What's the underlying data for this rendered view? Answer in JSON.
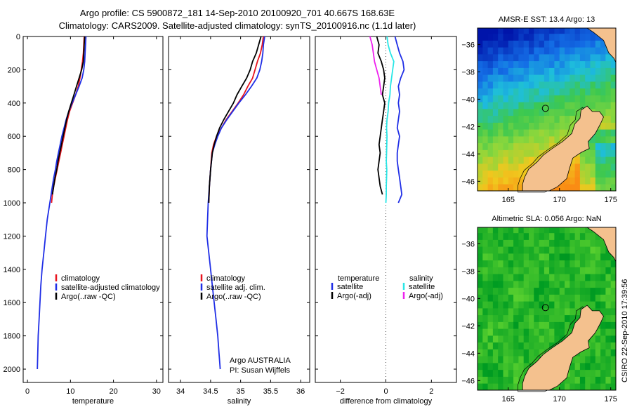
{
  "header": {
    "line1": "Argo profile: CS 5900872_181 14-Sep-2010 20100920_701 40.667S 168.63E",
    "line2": "Climatology: CARS2009. Satellite-adjusted climatology: synTS_20100916.nc (1.1d later)"
  },
  "footer": {
    "credit1": "Argo AUSTRALIA",
    "credit2": "PI: Susan Wijffels",
    "stamp": "CSIRO 22-Sep-2010 17:39:56"
  },
  "colors": {
    "climatology": "#e8141e",
    "satellite": "#1f2ee6",
    "argo": "#000000",
    "sal_satellite": "#28e6e6",
    "sal_argo": "#ee22ee",
    "land": "#f4c18e"
  },
  "chart_data": [
    {
      "type": "line",
      "id": "temperature",
      "xlabel": "temperature",
      "ylabel": "",
      "xlim": [
        -1,
        31.5
      ],
      "ylim": [
        0,
        2080
      ],
      "y_reversed": true,
      "xticks": [
        0,
        10,
        20,
        30
      ],
      "yticks": [
        0,
        200,
        400,
        600,
        800,
        1000,
        1200,
        1400,
        1600,
        1800,
        2000
      ],
      "legend": {
        "position": "lower-right",
        "entries": [
          "climatology",
          "satellite-adjusted climatology",
          "Argo(..raw -QC)"
        ]
      },
      "series": [
        {
          "name": "climatology",
          "color": "#e8141e",
          "points": [
            [
              13.2,
              0
            ],
            [
              13.1,
              50
            ],
            [
              13.0,
              100
            ],
            [
              12.8,
              150
            ],
            [
              12.5,
              200
            ],
            [
              12.2,
              250
            ],
            [
              11.8,
              300
            ],
            [
              11.2,
              350
            ],
            [
              10.5,
              400
            ],
            [
              9.8,
              450
            ],
            [
              9.3,
              500
            ],
            [
              8.9,
              550
            ],
            [
              8.5,
              600
            ],
            [
              8.1,
              650
            ],
            [
              7.7,
              700
            ],
            [
              7.3,
              750
            ],
            [
              6.9,
              800
            ],
            [
              6.5,
              850
            ],
            [
              6.1,
              900
            ],
            [
              5.8,
              950
            ],
            [
              5.6,
              1000
            ]
          ]
        },
        {
          "name": "satellite-adjusted climatology",
          "color": "#1f2ee6",
          "points": [
            [
              13.6,
              0
            ],
            [
              13.5,
              50
            ],
            [
              13.4,
              100
            ],
            [
              13.3,
              150
            ],
            [
              13.1,
              200
            ],
            [
              12.7,
              250
            ],
            [
              12.0,
              300
            ],
            [
              11.2,
              350
            ],
            [
              10.4,
              400
            ],
            [
              9.6,
              450
            ],
            [
              9.0,
              500
            ],
            [
              8.5,
              550
            ],
            [
              8.0,
              600
            ],
            [
              7.6,
              650
            ],
            [
              7.2,
              700
            ],
            [
              6.8,
              750
            ],
            [
              6.5,
              800
            ],
            [
              6.1,
              850
            ],
            [
              5.8,
              900
            ],
            [
              5.5,
              950
            ],
            [
              5.2,
              1000
            ],
            [
              4.6,
              1100
            ],
            [
              4.2,
              1200
            ],
            [
              3.8,
              1300
            ],
            [
              3.4,
              1400
            ],
            [
              3.1,
              1500
            ],
            [
              2.9,
              1600
            ],
            [
              2.7,
              1700
            ],
            [
              2.5,
              1800
            ],
            [
              2.4,
              1900
            ],
            [
              2.3,
              2000
            ]
          ]
        },
        {
          "name": "Argo(..raw -QC)",
          "color": "#000000",
          "points": [
            [
              13.3,
              0
            ],
            [
              13.2,
              50
            ],
            [
              13.1,
              100
            ],
            [
              13.0,
              150
            ],
            [
              12.6,
              200
            ],
            [
              12.0,
              250
            ],
            [
              11.4,
              300
            ],
            [
              10.8,
              350
            ],
            [
              10.2,
              400
            ],
            [
              9.6,
              450
            ],
            [
              9.1,
              500
            ],
            [
              8.7,
              550
            ],
            [
              8.3,
              600
            ],
            [
              7.9,
              650
            ],
            [
              7.5,
              700
            ],
            [
              7.1,
              750
            ],
            [
              6.8,
              800
            ],
            [
              6.4,
              850
            ],
            [
              6.1,
              900
            ],
            [
              5.8,
              950
            ]
          ]
        }
      ]
    },
    {
      "type": "line",
      "id": "salinity",
      "xlabel": "salinity",
      "ylabel": "",
      "xlim": [
        33.8,
        36.15
      ],
      "ylim": [
        0,
        2080
      ],
      "y_reversed": true,
      "xticks": [
        34,
        34.5,
        35,
        35.5,
        36
      ],
      "yticks": [
        0,
        200,
        400,
        600,
        800,
        1000,
        1200,
        1400,
        1600,
        1800,
        2000
      ],
      "legend": {
        "position": "lower-right",
        "entries": [
          "climatology",
          "satellite adj. clim.",
          "Argo(..raw -QC)"
        ]
      },
      "series": [
        {
          "name": "climatology",
          "color": "#e8141e",
          "points": [
            [
              35.38,
              0
            ],
            [
              35.36,
              50
            ],
            [
              35.33,
              100
            ],
            [
              35.28,
              150
            ],
            [
              35.24,
              200
            ],
            [
              35.2,
              250
            ],
            [
              35.12,
              300
            ],
            [
              35.05,
              350
            ],
            [
              34.96,
              400
            ],
            [
              34.86,
              450
            ],
            [
              34.76,
              500
            ],
            [
              34.68,
              550
            ],
            [
              34.6,
              600
            ],
            [
              34.55,
              650
            ],
            [
              34.52,
              700
            ],
            [
              34.5,
              800
            ],
            [
              34.48,
              900
            ],
            [
              34.47,
              1000
            ]
          ]
        },
        {
          "name": "satellite adj. clim.",
          "color": "#1f2ee6",
          "points": [
            [
              35.4,
              0
            ],
            [
              35.38,
              50
            ],
            [
              35.37,
              100
            ],
            [
              35.35,
              150
            ],
            [
              35.32,
              200
            ],
            [
              35.27,
              250
            ],
            [
              35.18,
              300
            ],
            [
              35.08,
              350
            ],
            [
              34.97,
              400
            ],
            [
              34.87,
              450
            ],
            [
              34.77,
              500
            ],
            [
              34.68,
              550
            ],
            [
              34.62,
              600
            ],
            [
              34.57,
              650
            ],
            [
              34.53,
              700
            ],
            [
              34.5,
              800
            ],
            [
              34.48,
              900
            ],
            [
              34.46,
              1000
            ],
            [
              34.45,
              1100
            ],
            [
              34.44,
              1200
            ],
            [
              34.47,
              1300
            ],
            [
              34.5,
              1400
            ],
            [
              34.53,
              1500
            ],
            [
              34.56,
              1600
            ],
            [
              34.59,
              1700
            ],
            [
              34.62,
              1800
            ],
            [
              34.64,
              1900
            ],
            [
              34.66,
              2000
            ]
          ]
        },
        {
          "name": "Argo(..raw -QC)",
          "color": "#000000",
          "points": [
            [
              35.34,
              0
            ],
            [
              35.3,
              50
            ],
            [
              35.26,
              100
            ],
            [
              35.2,
              150
            ],
            [
              35.16,
              200
            ],
            [
              35.1,
              250
            ],
            [
              35.02,
              300
            ],
            [
              34.94,
              350
            ],
            [
              34.88,
              400
            ],
            [
              34.8,
              450
            ],
            [
              34.72,
              500
            ],
            [
              34.65,
              550
            ],
            [
              34.6,
              600
            ],
            [
              34.56,
              650
            ],
            [
              34.53,
              700
            ],
            [
              34.5,
              800
            ],
            [
              34.48,
              900
            ],
            [
              34.47,
              1000
            ]
          ]
        }
      ]
    },
    {
      "type": "line",
      "id": "difference",
      "xlabel": "difference from climatology",
      "ylabel": "",
      "xlim": [
        -3.1,
        3.1
      ],
      "ylim": [
        0,
        2080
      ],
      "y_reversed": true,
      "xticks": [
        -2,
        0,
        2
      ],
      "yticks": [
        0,
        200,
        400,
        600,
        800,
        1000,
        1200,
        1400,
        1600,
        1800,
        2000
      ],
      "zero_line": "dotted",
      "legend": {
        "position": "lower-center",
        "entries": [
          "temperature",
          "satellite",
          "Argo(-adj)",
          "salinity",
          "satellite",
          "Argo(-adj)"
        ]
      },
      "series": [
        {
          "name": "satellite",
          "group": "temperature",
          "color": "#1f2ee6",
          "points": [
            [
              0.4,
              0
            ],
            [
              0.5,
              50
            ],
            [
              0.6,
              100
            ],
            [
              0.75,
              150
            ],
            [
              0.8,
              200
            ],
            [
              0.65,
              250
            ],
            [
              0.55,
              300
            ],
            [
              0.6,
              350
            ],
            [
              0.55,
              400
            ],
            [
              0.6,
              450
            ],
            [
              0.55,
              500
            ],
            [
              0.5,
              550
            ],
            [
              0.6,
              600
            ],
            [
              0.55,
              650
            ],
            [
              0.5,
              700
            ],
            [
              0.5,
              750
            ],
            [
              0.55,
              800
            ],
            [
              0.6,
              850
            ],
            [
              0.65,
              900
            ],
            [
              0.7,
              950
            ],
            [
              0.55,
              1000
            ]
          ]
        },
        {
          "name": "Argo(-adj)",
          "group": "temperature",
          "color": "#000000",
          "points": [
            [
              -0.4,
              0
            ],
            [
              -0.3,
              50
            ],
            [
              -0.35,
              100
            ],
            [
              -0.2,
              150
            ],
            [
              -0.1,
              200
            ],
            [
              -0.05,
              250
            ],
            [
              -0.1,
              300
            ],
            [
              -0.15,
              350
            ],
            [
              -0.05,
              400
            ],
            [
              -0.1,
              450
            ],
            [
              -0.15,
              500
            ],
            [
              -0.2,
              550
            ],
            [
              -0.25,
              600
            ],
            [
              -0.3,
              650
            ],
            [
              -0.25,
              700
            ],
            [
              -0.3,
              750
            ],
            [
              -0.35,
              800
            ],
            [
              -0.3,
              850
            ],
            [
              -0.25,
              900
            ],
            [
              -0.15,
              950
            ]
          ]
        },
        {
          "name": "satellite",
          "group": "salinity",
          "color": "#28e6e6",
          "points": [
            [
              0.05,
              0
            ],
            [
              0.1,
              50
            ],
            [
              0.2,
              100
            ],
            [
              0.35,
              150
            ],
            [
              0.3,
              200
            ],
            [
              0.25,
              250
            ],
            [
              0.2,
              300
            ],
            [
              0.18,
              350
            ],
            [
              0.12,
              400
            ],
            [
              0.1,
              450
            ],
            [
              0.05,
              500
            ],
            [
              0.03,
              550
            ],
            [
              0.05,
              600
            ],
            [
              0.04,
              650
            ],
            [
              0.03,
              700
            ],
            [
              0.02,
              750
            ],
            [
              0.04,
              800
            ],
            [
              0.03,
              850
            ],
            [
              0.02,
              900
            ],
            [
              0.02,
              950
            ],
            [
              0.0,
              1000
            ]
          ]
        },
        {
          "name": "Argo(-adj)",
          "group": "salinity",
          "color": "#ee22ee",
          "points": [
            [
              -0.7,
              0
            ],
            [
              -0.6,
              50
            ],
            [
              -0.55,
              100
            ],
            [
              -0.5,
              150
            ],
            [
              -0.4,
              200
            ],
            [
              -0.3,
              250
            ],
            [
              -0.25,
              300
            ],
            [
              -0.2,
              350
            ]
          ]
        }
      ]
    },
    {
      "type": "heatmap",
      "id": "sst_map",
      "title": "AMSR-E SST: 13.4 Argo: 13",
      "xlim": [
        162,
        175.5
      ],
      "ylim": [
        -46.7,
        -34.8
      ],
      "xticks": [
        165,
        170,
        175
      ],
      "yticks": [
        -36,
        -38,
        -40,
        -42,
        -44,
        -46
      ],
      "float_position": {
        "lon": 168.63,
        "lat": -40.667
      }
    },
    {
      "type": "heatmap",
      "id": "sla_map",
      "title": "Altimetric SLA: 0.056 Argo: NaN",
      "xlim": [
        162,
        175.5
      ],
      "ylim": [
        -46.7,
        -34.8
      ],
      "xticks": [
        165,
        170,
        175
      ],
      "yticks": [
        -36,
        -38,
        -40,
        -42,
        -44,
        -46
      ],
      "float_position": {
        "lon": 168.63,
        "lat": -40.667
      }
    }
  ]
}
